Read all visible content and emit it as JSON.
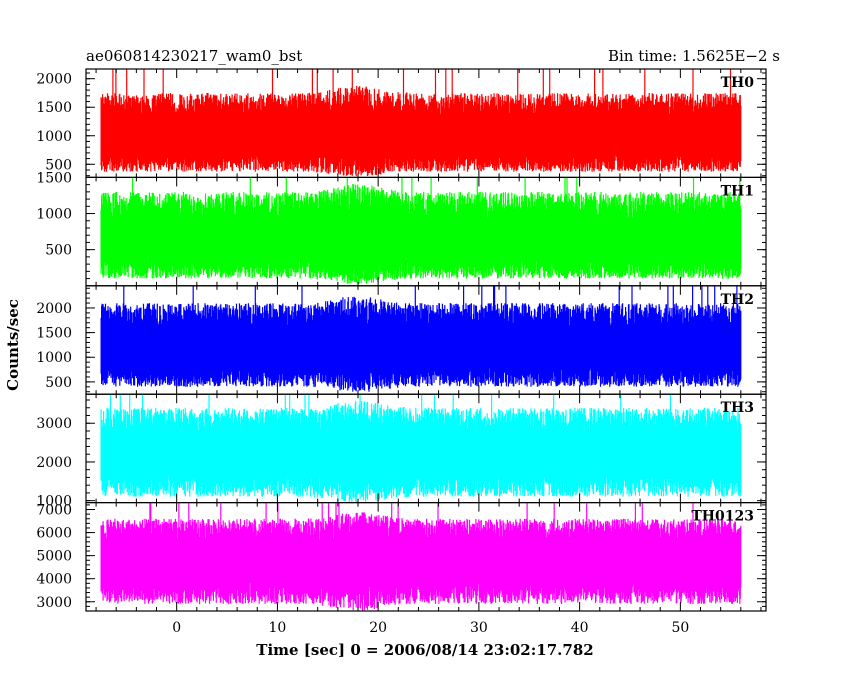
{
  "chart_data": {
    "type": "line",
    "title_left": "ae060814230217_wam0_bst",
    "title_right": "Bin time: 1.5625E−2 s",
    "xlabel": "Time [sec] 0 = 2006/08/14 23:02:17.782",
    "ylabel": "Counts/sec",
    "xlim": [
      -9,
      58.5
    ],
    "xticks": [
      0,
      10,
      20,
      30,
      40,
      50
    ],
    "x_data_range": [
      -7.5,
      56
    ],
    "grid": false,
    "panels": [
      {
        "name": "TH0",
        "color": "#ff0000",
        "ylim": [
          270,
          2170
        ],
        "yticks": [
          500,
          1000,
          1500,
          2000
        ],
        "baseline": 950,
        "low_envelope": 370,
        "high_envelope": 1750,
        "peak_values": [
          2170,
          2170
        ],
        "bump_time": 18
      },
      {
        "name": "TH1",
        "color": "#00ff00",
        "ylim": [
          0,
          1500
        ],
        "yticks": [
          500,
          1000,
          1500
        ],
        "baseline": 600,
        "low_envelope": 100,
        "high_envelope": 1300,
        "peak_values": [
          1500
        ],
        "bump_time": 18
      },
      {
        "name": "TH2",
        "color": "#0000ff",
        "ylim": [
          250,
          2450
        ],
        "yticks": [
          500,
          1000,
          1500,
          2000
        ],
        "baseline": 1150,
        "low_envelope": 400,
        "high_envelope": 2100,
        "peak_values": [
          2450
        ],
        "bump_time": 18
      },
      {
        "name": "TH3",
        "color": "#00ffff",
        "ylim": [
          950,
          3750
        ],
        "yticks": [
          1000,
          2000,
          3000
        ],
        "baseline": 2200,
        "low_envelope": 1100,
        "high_envelope": 3400,
        "peak_values": [
          3650
        ],
        "bump_time": 18
      },
      {
        "name": "TH0123",
        "color": "#ff00ff",
        "ylim": [
          2600,
          7300
        ],
        "yticks": [
          3000,
          4000,
          5000,
          6000,
          7000
        ],
        "baseline": 4700,
        "low_envelope": 2900,
        "high_envelope": 6600,
        "peak_values": [
          7200
        ],
        "bump_time": 18
      }
    ]
  }
}
